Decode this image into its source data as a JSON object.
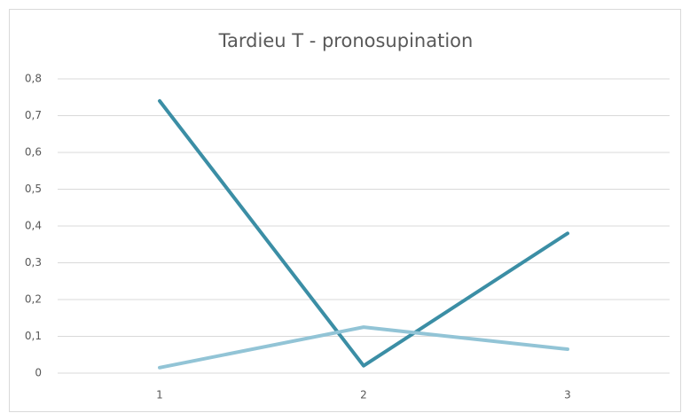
{
  "chart_data": {
    "type": "line",
    "title": "Tardieu T - pronosupination",
    "categories": [
      "1",
      "2",
      "3"
    ],
    "series": [
      {
        "color": "#3b8ea5",
        "values": [
          0.74,
          0.02,
          0.38
        ]
      },
      {
        "color": "#92c4d6",
        "values": [
          0.015,
          0.125,
          0.065
        ]
      }
    ],
    "ylim": [
      0,
      0.8
    ],
    "yticks": [
      0,
      {
        "value": 0.1,
        "label": "0,1"
      },
      {
        "value": 0.2,
        "label": "0,2"
      },
      {
        "value": 0.3,
        "label": "0,3"
      },
      {
        "value": 0.4,
        "label": "0,4"
      },
      {
        "value": 0.5,
        "label": "0,5"
      },
      {
        "value": 0.6,
        "label": "0,6"
      },
      {
        "value": 0.7,
        "label": "0,7"
      },
      {
        "value": 0.8,
        "label": "0,8"
      }
    ],
    "grid": true
  }
}
